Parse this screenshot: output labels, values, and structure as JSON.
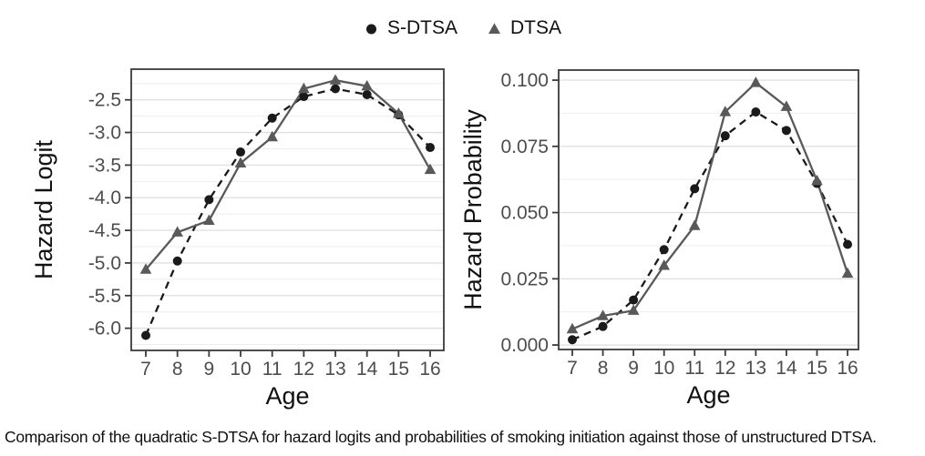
{
  "caption": "Comparison of the quadratic S-DTSA for hazard logits and probabilities of smoking initiation against those of unstructured DTSA.",
  "legend": {
    "position": "top-center",
    "items": [
      {
        "label": "S-DTSA",
        "marker": "circle",
        "line": "dashed"
      },
      {
        "label": "DTSA",
        "marker": "triangle",
        "line": "solid"
      }
    ]
  },
  "colors": {
    "sdtsa": "#1a1a1a",
    "dtsa": "#595959",
    "grid_major": "#e0e0e0",
    "grid_minor": "#eeeeee",
    "border": "#3a3a3a",
    "tick_label": "#4d4d4d",
    "axis_title": "#111111",
    "background": "#ffffff"
  },
  "chart_data": [
    {
      "type": "line",
      "title": "",
      "xlabel": "Age",
      "ylabel": "Hazard Logit",
      "x": [
        7,
        8,
        9,
        10,
        11,
        12,
        13,
        14,
        15,
        16
      ],
      "xticks": [
        7,
        8,
        9,
        10,
        11,
        12,
        13,
        14,
        15,
        16
      ],
      "ylim": [
        -6.34,
        -2.03
      ],
      "yticks": [
        -6.0,
        -5.5,
        -5.0,
        -4.5,
        -4.0,
        -3.5,
        -3.0,
        -2.5
      ],
      "ytick_labels": [
        "-6.0",
        "-5.5",
        "-5.0",
        "-4.5",
        "-4.0",
        "-3.5",
        "-3.0",
        "-2.5"
      ],
      "grid": "horizontal-major-and-minor",
      "legend_position": "top-center-shared",
      "series": [
        {
          "name": "S-DTSA",
          "marker": "circle",
          "line": "dashed",
          "color": "#1a1a1a",
          "values": [
            -6.11,
            -4.97,
            -4.03,
            -3.3,
            -2.78,
            -2.45,
            -2.33,
            -2.42,
            -2.73,
            -3.23
          ]
        },
        {
          "name": "DTSA",
          "marker": "triangle",
          "line": "solid",
          "color": "#595959",
          "values": [
            -5.1,
            -4.53,
            -4.35,
            -3.47,
            -3.07,
            -2.33,
            -2.2,
            -2.29,
            -2.71,
            -3.57
          ]
        }
      ]
    },
    {
      "type": "line",
      "title": "",
      "xlabel": "Age",
      "ylabel": "Hazard Probability",
      "x": [
        7,
        8,
        9,
        10,
        11,
        12,
        13,
        14,
        15,
        16
      ],
      "xticks": [
        7,
        8,
        9,
        10,
        11,
        12,
        13,
        14,
        15,
        16
      ],
      "ylim": [
        -0.0017,
        0.1038
      ],
      "yticks": [
        0.0,
        0.025,
        0.05,
        0.075,
        0.1
      ],
      "ytick_labels": [
        "0.000",
        "0.025",
        "0.050",
        "0.075",
        "0.100"
      ],
      "grid": "horizontal-major-and-minor",
      "legend_position": "top-center-shared",
      "series": [
        {
          "name": "S-DTSA",
          "marker": "circle",
          "line": "dashed",
          "color": "#1a1a1a",
          "values": [
            0.002,
            0.007,
            0.017,
            0.036,
            0.059,
            0.079,
            0.088,
            0.081,
            0.061,
            0.038
          ]
        },
        {
          "name": "DTSA",
          "marker": "triangle",
          "line": "solid",
          "color": "#595959",
          "values": [
            0.006,
            0.011,
            0.013,
            0.03,
            0.045,
            0.088,
            0.099,
            0.09,
            0.062,
            0.027
          ]
        }
      ]
    }
  ]
}
